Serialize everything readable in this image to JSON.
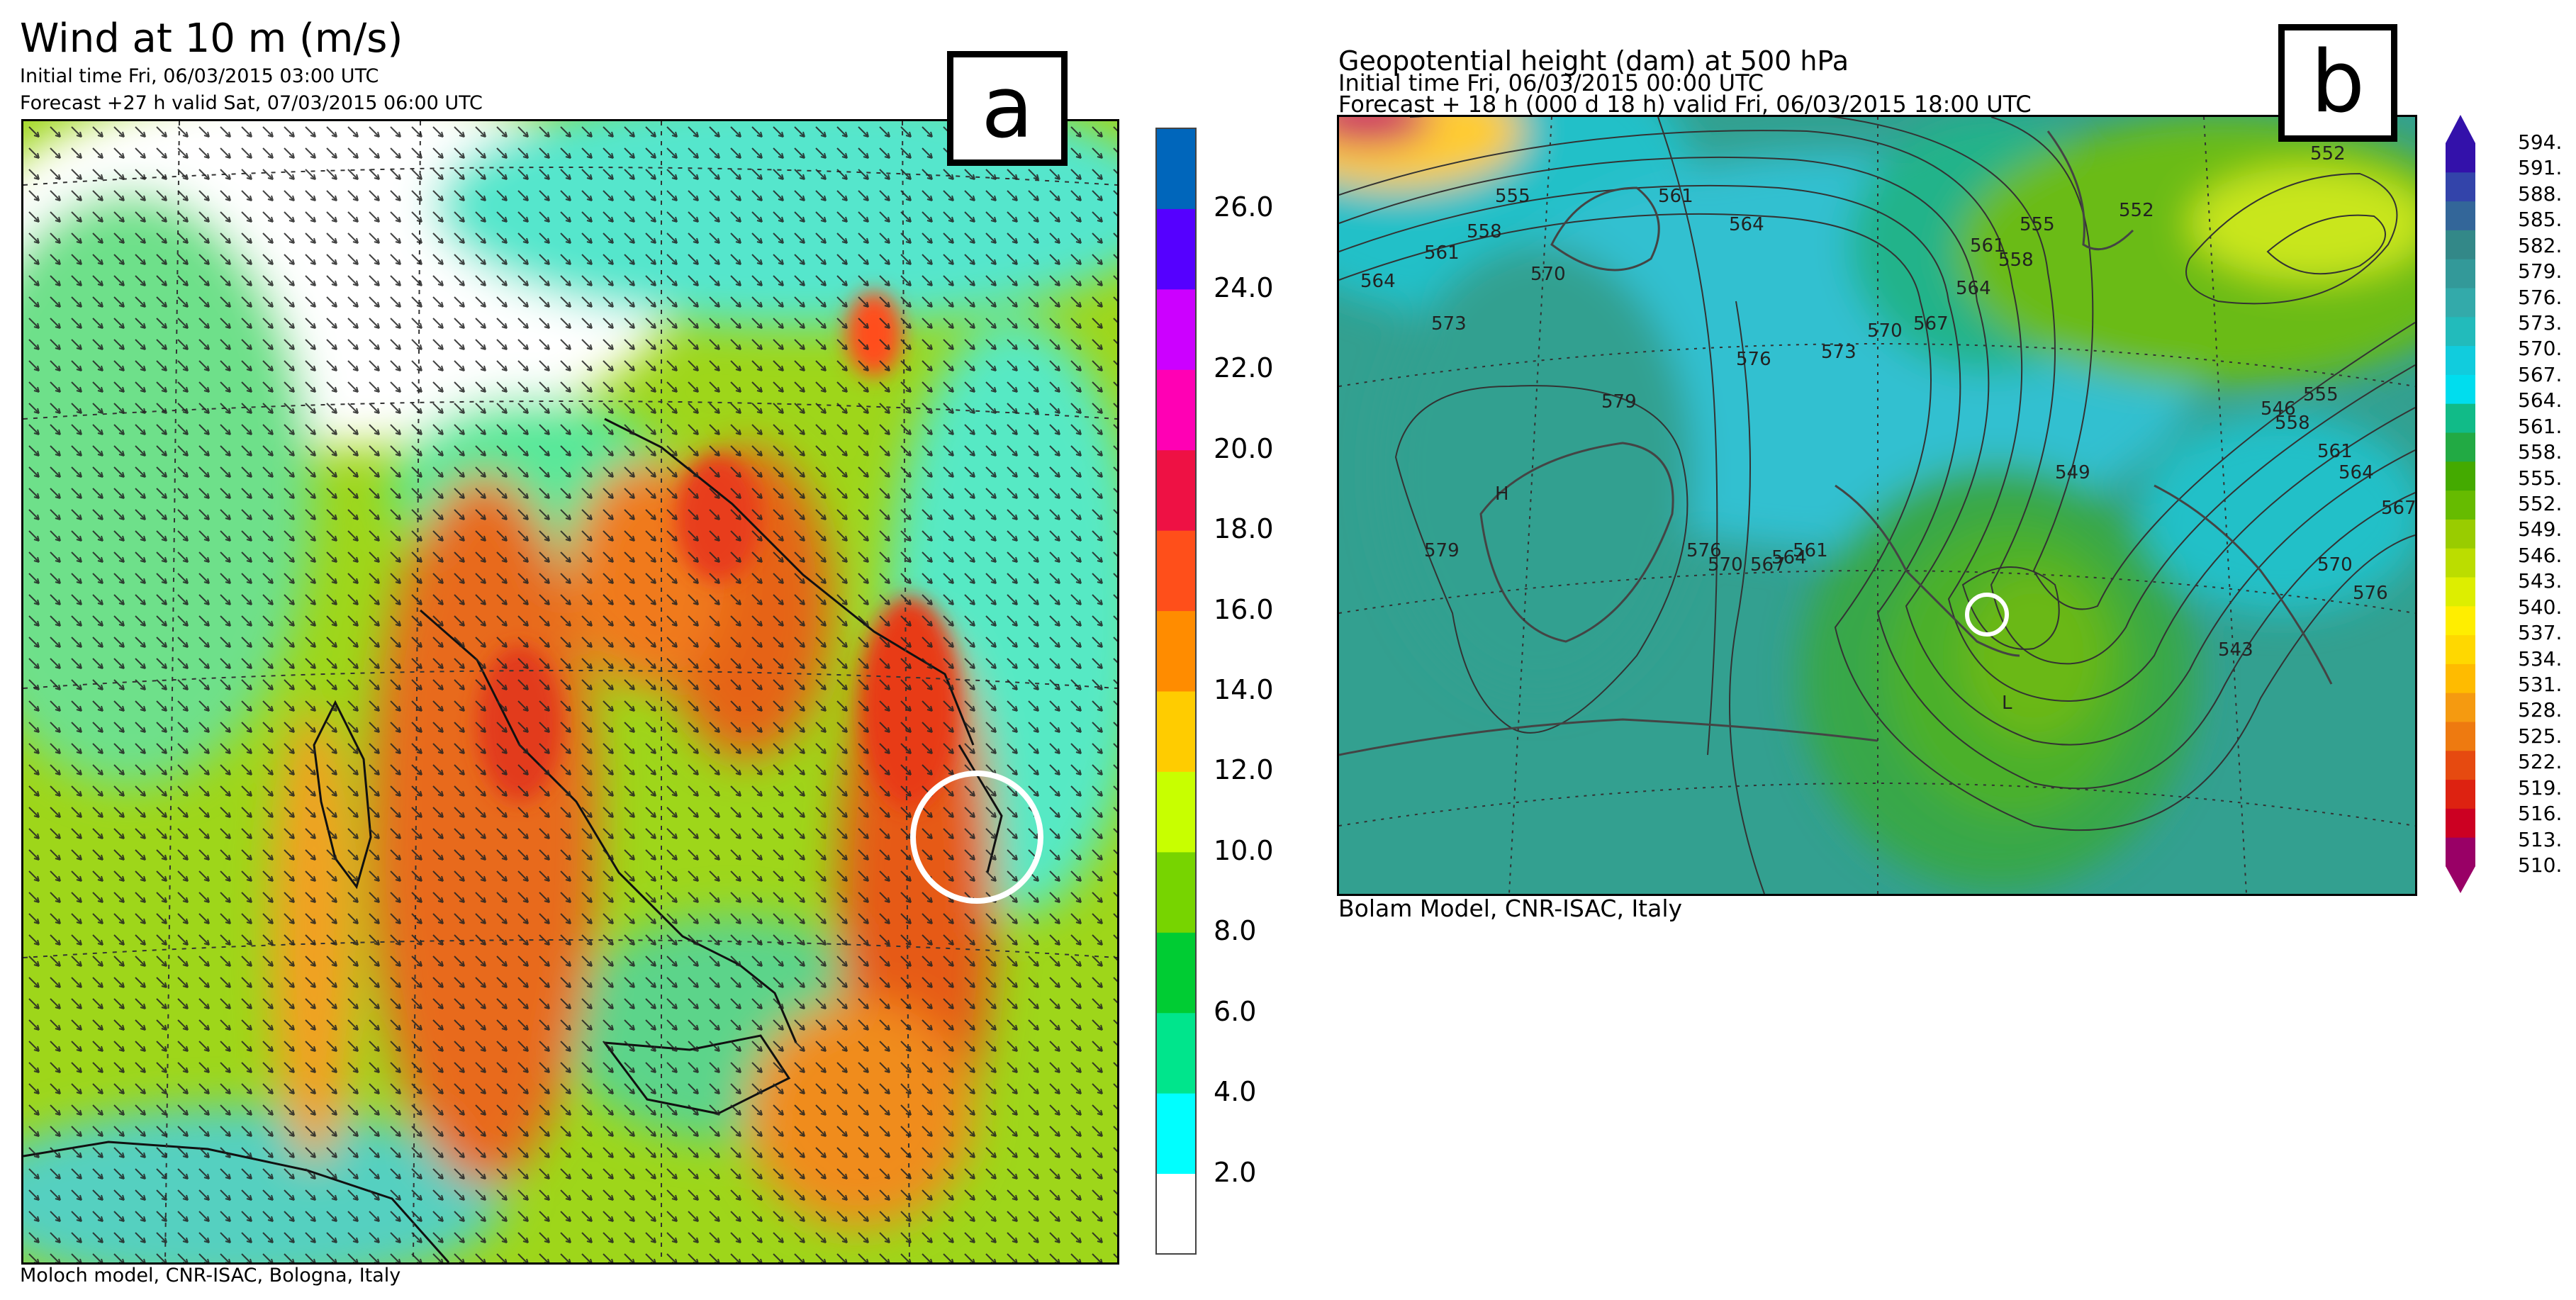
{
  "panel_a": {
    "title": "Wind at 10 m (m/s)",
    "initial_time": "Initial time  Fri, 06/03/2015 03:00 UTC",
    "forecast": "Forecast +27 h valid  Sat, 07/03/2015 06:00 UTC",
    "label": "a",
    "footer": "Moloch model, CNR-ISAC, Bologna, Italy",
    "colorbar": {
      "colors": [
        "#ffffff",
        "#00ffff",
        "#00e58c",
        "#00cc33",
        "#77d400",
        "#c8ff00",
        "#ffcc00",
        "#ff8c00",
        "#ff4f1a",
        "#ee1144",
        "#ff00b4",
        "#cc00ff",
        "#5500ff",
        "#0066bb"
      ],
      "ticks": [
        "2.0",
        "4.0",
        "6.0",
        "8.0",
        "10.0",
        "12.0",
        "14.0",
        "16.0",
        "18.0",
        "20.0",
        "22.0",
        "24.0",
        "26.0"
      ]
    }
  },
  "panel_b": {
    "title": "Geopotential height (dam) at 500 hPa",
    "initial_time": "Initial time  Fri, 06/03/2015  00:00 UTC",
    "forecast": "Forecast  +  18 h  (000 d 18 h)  valid Fri, 06/03/2015 18:00 UTC",
    "label": "b",
    "footer": "Bolam Model, CNR-ISAC, Italy",
    "colorbar": {
      "colors": [
        "#990066",
        "#cc0022",
        "#dd2211",
        "#e64a10",
        "#ee7a10",
        "#f59a10",
        "#ffbb00",
        "#ffd800",
        "#ffee00",
        "#ddee00",
        "#bbdd00",
        "#99cc00",
        "#66bb00",
        "#44aa00",
        "#22aa44",
        "#11bb88",
        "#00ddee",
        "#11ccdd",
        "#22bbbb",
        "#33aaaa",
        "#339999",
        "#338888",
        "#336699",
        "#3344aa",
        "#3311aa"
      ],
      "ticks": [
        "510.",
        "513.",
        "516.",
        "519.",
        "522.",
        "525.",
        "528.",
        "531.",
        "534.",
        "537.",
        "540.",
        "543.",
        "546.",
        "549.",
        "552.",
        "555.",
        "558.",
        "561.",
        "564.",
        "567.",
        "570.",
        "573.",
        "576.",
        "579.",
        "582.",
        "585.",
        "588.",
        "591.",
        "594."
      ]
    },
    "contour_labels": [
      "564",
      "561",
      "558",
      "555",
      "561",
      "564",
      "570",
      "573",
      "576",
      "579",
      "573",
      "570",
      "567",
      "564",
      "561",
      "558",
      "555",
      "579",
      "576",
      "570",
      "567",
      "564",
      "561",
      "552",
      "549",
      "543",
      "546",
      "552",
      "555",
      "558",
      "561",
      "564",
      "567",
      "570",
      "576",
      "H",
      "L"
    ]
  }
}
